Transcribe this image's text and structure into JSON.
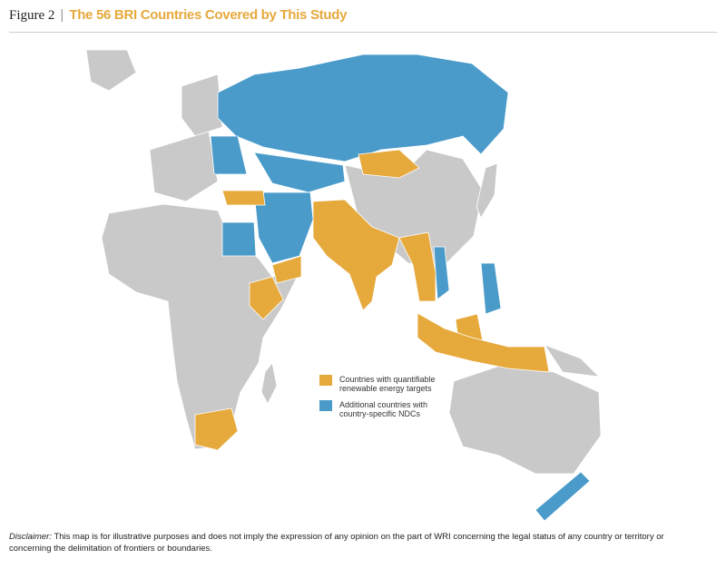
{
  "header": {
    "figure_label": "Figure 2",
    "separator": "|",
    "title": "The 56 BRI Countries Covered by This Study"
  },
  "legend": {
    "items": [
      {
        "label": "Countries with quantifiable renewable energy targets",
        "color": "#e6a93c"
      },
      {
        "label": "Additional countries with country-specific NDCs",
        "color": "#4a9bca"
      }
    ]
  },
  "disclaimer": {
    "lead": "Disclaimer:",
    "text": "This map is for illustrative purposes and does not imply the expression of any opinion on the part of WRI concerning the legal status of any country or territory or concerning the delimitation of frontiers or boundaries."
  }
}
